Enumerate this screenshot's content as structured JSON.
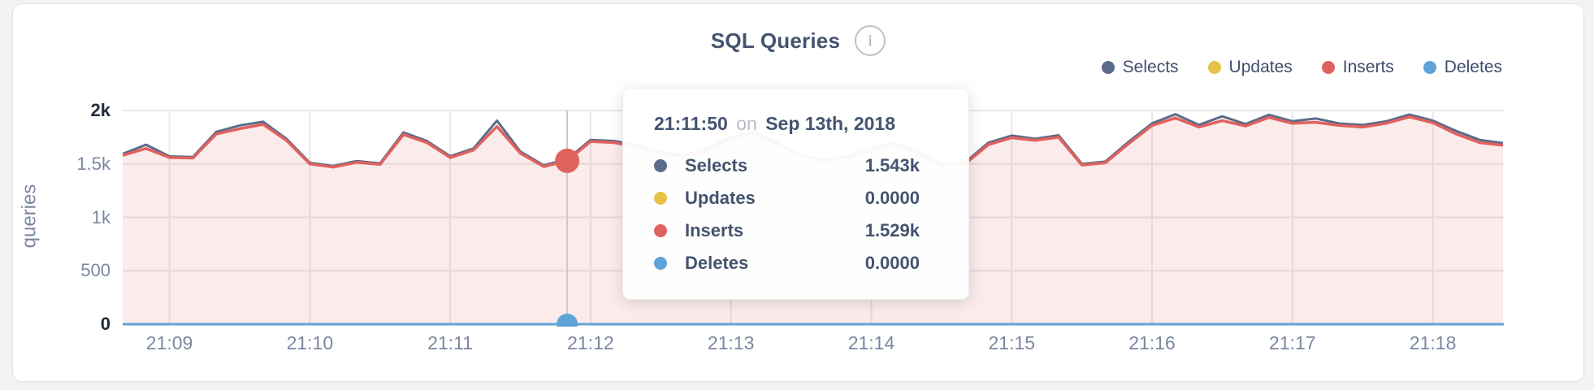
{
  "header": {
    "title": "SQL Queries",
    "info_glyph": "i"
  },
  "legend": {
    "items": [
      "Selects",
      "Updates",
      "Inserts",
      "Deletes"
    ]
  },
  "tooltip": {
    "time": "21:11:50",
    "on_word": "on",
    "date": "Sep 13th, 2018",
    "rows": [
      {
        "series": "Selects",
        "color": "#5b6b89",
        "value": "1.543k"
      },
      {
        "series": "Updates",
        "color": "#e8c248",
        "value": "0.0000"
      },
      {
        "series": "Inserts",
        "color": "#e0625e",
        "value": "1.529k"
      },
      {
        "series": "Deletes",
        "color": "#5fa3d9",
        "value": "0.0000"
      }
    ]
  },
  "chart_data": {
    "type": "area",
    "title": "SQL Queries",
    "xlabel": "",
    "ylabel": "queries",
    "ylim": [
      0,
      2000
    ],
    "grid": true,
    "legend_position": "top-right",
    "x": [
      "21:08:40",
      "21:08:50",
      "21:09:00",
      "21:09:10",
      "21:09:20",
      "21:09:30",
      "21:09:40",
      "21:09:50",
      "21:10:00",
      "21:10:10",
      "21:10:20",
      "21:10:30",
      "21:10:40",
      "21:10:50",
      "21:11:00",
      "21:11:10",
      "21:11:20",
      "21:11:30",
      "21:11:40",
      "21:11:50",
      "21:12:00",
      "21:12:10",
      "21:12:20",
      "21:12:30",
      "21:12:40",
      "21:12:50",
      "21:13:00",
      "21:13:10",
      "21:13:20",
      "21:13:30",
      "21:13:40",
      "21:13:50",
      "21:14:00",
      "21:14:10",
      "21:14:20",
      "21:14:30",
      "21:14:40",
      "21:14:50",
      "21:15:00",
      "21:15:10",
      "21:15:20",
      "21:15:30",
      "21:15:40",
      "21:15:50",
      "21:16:00",
      "21:16:10",
      "21:16:20",
      "21:16:30",
      "21:16:40",
      "21:16:50",
      "21:17:00",
      "21:17:10",
      "21:17:20",
      "21:17:30",
      "21:17:40",
      "21:17:50",
      "21:18:00",
      "21:18:10",
      "21:18:20",
      "21:18:30"
    ],
    "x_ticks": [
      "21:09",
      "21:10",
      "21:11",
      "21:12",
      "21:13",
      "21:14",
      "21:15",
      "21:16",
      "21:17",
      "21:18"
    ],
    "y_ticks": [
      {
        "label": "2k",
        "value": 2000,
        "dark": true
      },
      {
        "label": "1.5k",
        "value": 1500,
        "dark": false
      },
      {
        "label": "1k",
        "value": 1000,
        "dark": false
      },
      {
        "label": "500",
        "value": 500,
        "dark": false
      },
      {
        "label": "0",
        "value": 0,
        "dark": true
      }
    ],
    "series": [
      {
        "name": "Selects",
        "color": "#5b6b89",
        "values": [
          1595,
          1680,
          1570,
          1565,
          1800,
          1860,
          1895,
          1735,
          1510,
          1480,
          1527,
          1505,
          1795,
          1715,
          1572,
          1645,
          1905,
          1615,
          1487,
          1543,
          1725,
          1715,
          1675,
          1612,
          1580,
          1645,
          1750,
          1800,
          1695,
          1580,
          1540,
          1572,
          1645,
          1695,
          1612,
          1500,
          1512,
          1698,
          1765,
          1735,
          1768,
          1500,
          1522,
          1708,
          1880,
          1965,
          1865,
          1945,
          1873,
          1960,
          1900,
          1925,
          1878,
          1865,
          1898,
          1962,
          1905,
          1808,
          1725,
          1695
        ]
      },
      {
        "name": "Updates",
        "color": "#e8c248",
        "values": [
          0,
          0,
          0,
          0,
          0,
          0,
          0,
          0,
          0,
          0,
          0,
          0,
          0,
          0,
          0,
          0,
          0,
          0,
          0,
          0,
          0,
          0,
          0,
          0,
          0,
          0,
          0,
          0,
          0,
          0,
          0,
          0,
          0,
          0,
          0,
          0,
          0,
          0,
          0,
          0,
          0,
          0,
          0,
          0,
          0,
          0,
          0,
          0,
          0,
          0,
          0,
          0,
          0,
          0,
          0,
          0,
          0,
          0,
          0,
          0
        ]
      },
      {
        "name": "Inserts",
        "color": "#e0625e",
        "fill": "rgba(224,97,94,0.13)",
        "values": [
          1580,
          1645,
          1560,
          1555,
          1780,
          1830,
          1870,
          1720,
          1500,
          1470,
          1515,
          1495,
          1775,
          1700,
          1560,
          1630,
          1850,
          1600,
          1475,
          1529,
          1710,
          1700,
          1660,
          1600,
          1570,
          1630,
          1730,
          1780,
          1680,
          1570,
          1530,
          1560,
          1630,
          1680,
          1600,
          1490,
          1500,
          1680,
          1745,
          1720,
          1750,
          1490,
          1510,
          1690,
          1860,
          1930,
          1845,
          1905,
          1855,
          1935,
          1880,
          1890,
          1860,
          1845,
          1880,
          1940,
          1885,
          1780,
          1700,
          1675
        ]
      },
      {
        "name": "Deletes",
        "color": "#5fa3d9",
        "values": [
          0,
          0,
          0,
          0,
          0,
          0,
          0,
          0,
          0,
          0,
          0,
          0,
          0,
          0,
          0,
          0,
          0,
          0,
          0,
          0,
          0,
          0,
          0,
          0,
          0,
          0,
          0,
          0,
          0,
          0,
          0,
          0,
          0,
          0,
          0,
          0,
          0,
          0,
          0,
          0,
          0,
          0,
          0,
          0,
          0,
          0,
          0,
          0,
          0,
          0,
          0,
          0,
          0,
          0,
          0,
          0,
          0,
          0,
          0,
          0
        ]
      }
    ],
    "hover": {
      "index": 19,
      "time": "21:11:50",
      "line_color": "#c7c9ce"
    },
    "colors": {
      "gridline": "#e7e8eb",
      "tick_dark": "#232c3d",
      "tick_gray": "#7b87a0"
    }
  }
}
